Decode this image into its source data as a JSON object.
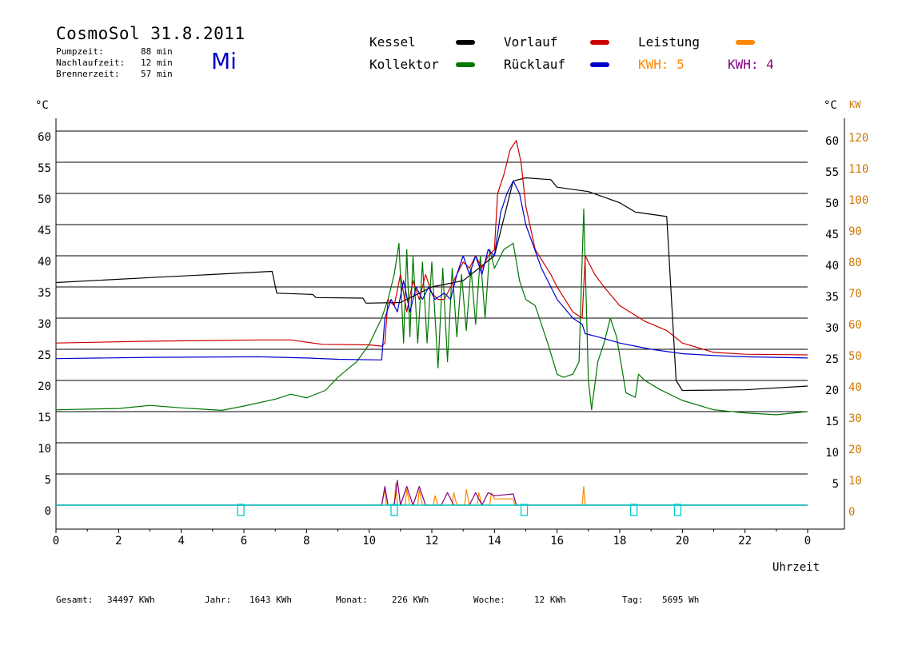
{
  "header": {
    "title": "CosmoSol 31.8.2011",
    "weekday": "Mi",
    "stats": [
      {
        "label": "Pumpzeit:",
        "value": "88 min"
      },
      {
        "label": "Nachlaufzeit:",
        "value": "12 min"
      },
      {
        "label": "Brennerzeit:",
        "value": "57 min"
      }
    ]
  },
  "legend": {
    "kessel": "Kessel",
    "kollektor": "Kollektor",
    "vorlauf": "Vorlauf",
    "ruecklauf": "Rücklauf",
    "leistung": "Leistung",
    "kwh_orange": "KWH: 5",
    "kwh_purple": "KWH: 4"
  },
  "footer": {
    "gesamt_label": "Gesamt:",
    "gesamt_value": "34497 KWh",
    "jahr_label": "Jahr:",
    "jahr_value": "1643 KWh",
    "monat_label": "Monat:",
    "monat_value": "226 KWh",
    "woche_label": "Woche:",
    "woche_value": "12 KWh",
    "tag_label": "Tag:",
    "tag_value": "5695 Wh"
  },
  "chart_data": {
    "type": "line",
    "xlabel": "Uhrzeit",
    "ylabel_left": "°C",
    "ylabel_right_temp": "°C",
    "ylabel_right_power": "KW",
    "xlim": [
      0,
      24
    ],
    "ylim": [
      0,
      60
    ],
    "x_ticks": [
      "0",
      "2",
      "4",
      "6",
      "8",
      "10",
      "12",
      "14",
      "16",
      "18",
      "20",
      "22",
      "0"
    ],
    "y_ticks_left": [
      "0",
      "5",
      "10",
      "15",
      "20",
      "25",
      "30",
      "35",
      "40",
      "45",
      "50",
      "55",
      "60"
    ],
    "y_ticks_right_temp": [
      "5",
      "10",
      "15",
      "20",
      "25",
      "30",
      "35",
      "40",
      "45",
      "50",
      "55",
      "60"
    ],
    "y_ticks_right_power": [
      "0",
      "10",
      "20",
      "30",
      "40",
      "50",
      "60",
      "70",
      "80",
      "90",
      "100",
      "110",
      "120"
    ],
    "grid": "horizontal",
    "colors": {
      "kessel": "#000000",
      "kollektor": "#007700",
      "vorlauf": "#cc0000",
      "ruecklauf": "#0000cc",
      "leistung": "#ff8800",
      "kwh_purple": "#800080",
      "pump": "#00cccc"
    },
    "series": [
      {
        "name": "Kessel",
        "key": "kessel",
        "points": [
          [
            0,
            35.7
          ],
          [
            3,
            36.5
          ],
          [
            5,
            37
          ],
          [
            6.9,
            37.5
          ],
          [
            7.05,
            34
          ],
          [
            8.2,
            33.8
          ],
          [
            8.3,
            33.3
          ],
          [
            9.8,
            33.2
          ],
          [
            9.9,
            32.4
          ],
          [
            11,
            32.5
          ],
          [
            12,
            35
          ],
          [
            13,
            36
          ],
          [
            14,
            40
          ],
          [
            14.4,
            48
          ],
          [
            14.6,
            52
          ],
          [
            15,
            52.5
          ],
          [
            15.8,
            52.2
          ],
          [
            16,
            51
          ],
          [
            17,
            50.3
          ],
          [
            18,
            48.5
          ],
          [
            18.5,
            47
          ],
          [
            19.5,
            46.3
          ],
          [
            19.8,
            20
          ],
          [
            20,
            18.4
          ],
          [
            22,
            18.5
          ],
          [
            24,
            19.1
          ]
        ]
      },
      {
        "name": "Kollektor",
        "key": "kollektor",
        "points": [
          [
            0,
            15.3
          ],
          [
            2,
            15.5
          ],
          [
            3,
            16
          ],
          [
            4,
            15.6
          ],
          [
            5.3,
            15.2
          ],
          [
            6,
            15.9
          ],
          [
            7,
            17
          ],
          [
            7.5,
            17.8
          ],
          [
            8,
            17.2
          ],
          [
            8.6,
            18.4
          ],
          [
            9,
            20.5
          ],
          [
            9.6,
            23
          ],
          [
            10,
            25.8
          ],
          [
            10.4,
            30
          ],
          [
            10.6,
            33
          ],
          [
            10.8,
            37
          ],
          [
            10.95,
            42
          ],
          [
            11.1,
            26
          ],
          [
            11.2,
            41
          ],
          [
            11.3,
            27
          ],
          [
            11.4,
            40
          ],
          [
            11.55,
            26
          ],
          [
            11.7,
            39
          ],
          [
            11.85,
            26
          ],
          [
            12,
            39
          ],
          [
            12.2,
            22
          ],
          [
            12.35,
            38
          ],
          [
            12.5,
            23
          ],
          [
            12.65,
            38
          ],
          [
            12.8,
            27
          ],
          [
            12.95,
            37
          ],
          [
            13.1,
            28
          ],
          [
            13.25,
            38
          ],
          [
            13.4,
            29
          ],
          [
            13.55,
            40
          ],
          [
            13.7,
            30
          ],
          [
            13.85,
            41
          ],
          [
            14,
            38
          ],
          [
            14.3,
            41
          ],
          [
            14.6,
            42
          ],
          [
            14.8,
            36
          ],
          [
            15,
            33
          ],
          [
            15.3,
            32
          ],
          [
            15.7,
            26
          ],
          [
            16,
            21
          ],
          [
            16.2,
            20.5
          ],
          [
            16.5,
            21
          ],
          [
            16.7,
            23
          ],
          [
            16.85,
            47.5
          ],
          [
            17,
            20
          ],
          [
            17.1,
            15.3
          ],
          [
            17.3,
            23
          ],
          [
            17.5,
            26
          ],
          [
            17.7,
            30
          ],
          [
            17.9,
            27
          ],
          [
            18.2,
            18
          ],
          [
            18.5,
            17.3
          ],
          [
            18.6,
            21
          ],
          [
            18.8,
            20
          ],
          [
            19.3,
            18.5
          ],
          [
            20,
            16.8
          ],
          [
            21,
            15.3
          ],
          [
            22,
            14.8
          ],
          [
            23,
            14.5
          ],
          [
            24,
            15
          ]
        ]
      },
      {
        "name": "Vorlauf",
        "key": "vorlauf",
        "points": [
          [
            0,
            26
          ],
          [
            3,
            26.3
          ],
          [
            6.5,
            26.5
          ],
          [
            7.5,
            26.5
          ],
          [
            8.5,
            25.8
          ],
          [
            10,
            25.7
          ],
          [
            10.4,
            25.5
          ],
          [
            10.5,
            26
          ],
          [
            10.6,
            33
          ],
          [
            10.8,
            32
          ],
          [
            11,
            37
          ],
          [
            11.2,
            31
          ],
          [
            11.4,
            36
          ],
          [
            11.6,
            33
          ],
          [
            11.8,
            37
          ],
          [
            12,
            34
          ],
          [
            12.2,
            33
          ],
          [
            12.4,
            33
          ],
          [
            12.6,
            35
          ],
          [
            12.8,
            37
          ],
          [
            13,
            39
          ],
          [
            13.2,
            38
          ],
          [
            13.4,
            40
          ],
          [
            13.6,
            38
          ],
          [
            13.8,
            40
          ],
          [
            14,
            41
          ],
          [
            14.1,
            50
          ],
          [
            14.3,
            53
          ],
          [
            14.5,
            57
          ],
          [
            14.7,
            58.5
          ],
          [
            14.85,
            55
          ],
          [
            15,
            48
          ],
          [
            15.3,
            41
          ],
          [
            15.8,
            37
          ],
          [
            16,
            35
          ],
          [
            16.5,
            31
          ],
          [
            16.8,
            30
          ],
          [
            16.9,
            40
          ],
          [
            17.2,
            37
          ],
          [
            17.5,
            35
          ],
          [
            18,
            32
          ],
          [
            18.8,
            29.5
          ],
          [
            19.5,
            28
          ],
          [
            20,
            26
          ],
          [
            21,
            24.5
          ],
          [
            22,
            24.2
          ],
          [
            24,
            24.1
          ]
        ]
      },
      {
        "name": "Rücklauf",
        "key": "ruecklauf",
        "points": [
          [
            0,
            23.5
          ],
          [
            3,
            23.7
          ],
          [
            6.5,
            23.8
          ],
          [
            8,
            23.6
          ],
          [
            9,
            23.4
          ],
          [
            10.4,
            23.3
          ],
          [
            10.5,
            30
          ],
          [
            10.7,
            33
          ],
          [
            10.9,
            31
          ],
          [
            11.1,
            36
          ],
          [
            11.3,
            31
          ],
          [
            11.5,
            35
          ],
          [
            11.7,
            33
          ],
          [
            11.9,
            35
          ],
          [
            12.1,
            33
          ],
          [
            12.4,
            34
          ],
          [
            12.6,
            33
          ],
          [
            12.8,
            37
          ],
          [
            13,
            40
          ],
          [
            13.2,
            37
          ],
          [
            13.4,
            40
          ],
          [
            13.6,
            37
          ],
          [
            13.8,
            41
          ],
          [
            14,
            40
          ],
          [
            14.2,
            47
          ],
          [
            14.4,
            50
          ],
          [
            14.6,
            52
          ],
          [
            14.8,
            50
          ],
          [
            15,
            45
          ],
          [
            15.5,
            38
          ],
          [
            16,
            33
          ],
          [
            16.5,
            30
          ],
          [
            16.8,
            29
          ],
          [
            16.9,
            27.5
          ],
          [
            17.3,
            27
          ],
          [
            18,
            26
          ],
          [
            18.5,
            25.5
          ],
          [
            19,
            25
          ],
          [
            20,
            24.3
          ],
          [
            21,
            24
          ],
          [
            22,
            23.8
          ],
          [
            24,
            23.6
          ]
        ]
      },
      {
        "name": "Leistung",
        "key": "leistung",
        "unit": "kW",
        "points": [
          [
            0,
            0
          ],
          [
            10.4,
            0
          ],
          [
            10.5,
            5
          ],
          [
            10.55,
            0
          ],
          [
            10.8,
            0
          ],
          [
            10.85,
            7
          ],
          [
            10.9,
            0
          ],
          [
            11.15,
            0
          ],
          [
            11.2,
            5
          ],
          [
            11.3,
            0
          ],
          [
            11.55,
            0
          ],
          [
            11.6,
            5
          ],
          [
            11.7,
            0
          ],
          [
            12.05,
            0
          ],
          [
            12.1,
            3
          ],
          [
            12.2,
            0
          ],
          [
            12.65,
            0
          ],
          [
            12.7,
            4
          ],
          [
            12.8,
            0
          ],
          [
            13.05,
            0
          ],
          [
            13.1,
            5
          ],
          [
            13.2,
            0
          ],
          [
            13.45,
            0
          ],
          [
            13.5,
            4
          ],
          [
            13.6,
            0
          ],
          [
            13.85,
            0
          ],
          [
            13.9,
            4
          ],
          [
            14,
            2
          ],
          [
            14.6,
            2
          ],
          [
            14.65,
            0
          ],
          [
            16.8,
            0
          ],
          [
            16.85,
            6
          ],
          [
            16.9,
            0
          ],
          [
            24,
            0
          ]
        ]
      },
      {
        "name": "KWH 4",
        "key": "kwh_purple",
        "points": [
          [
            0,
            0
          ],
          [
            10.4,
            0
          ],
          [
            10.5,
            3
          ],
          [
            10.6,
            0
          ],
          [
            10.8,
            0
          ],
          [
            10.9,
            4
          ],
          [
            11,
            0
          ],
          [
            11.2,
            3
          ],
          [
            11.4,
            0
          ],
          [
            11.6,
            3
          ],
          [
            11.8,
            0
          ],
          [
            12.3,
            0
          ],
          [
            12.5,
            2
          ],
          [
            12.7,
            0
          ],
          [
            13.2,
            0
          ],
          [
            13.4,
            2
          ],
          [
            13.6,
            0
          ],
          [
            13.8,
            2
          ],
          [
            14,
            1.5
          ],
          [
            14.6,
            1.8
          ],
          [
            14.7,
            0
          ],
          [
            24,
            0
          ]
        ]
      },
      {
        "name": "Pumpe",
        "key": "pump",
        "points": [
          [
            0,
            0
          ],
          [
            24,
            0
          ]
        ]
      }
    ],
    "pump_markers": [
      5.9,
      10.8,
      14.95,
      18.45,
      19.85
    ]
  }
}
